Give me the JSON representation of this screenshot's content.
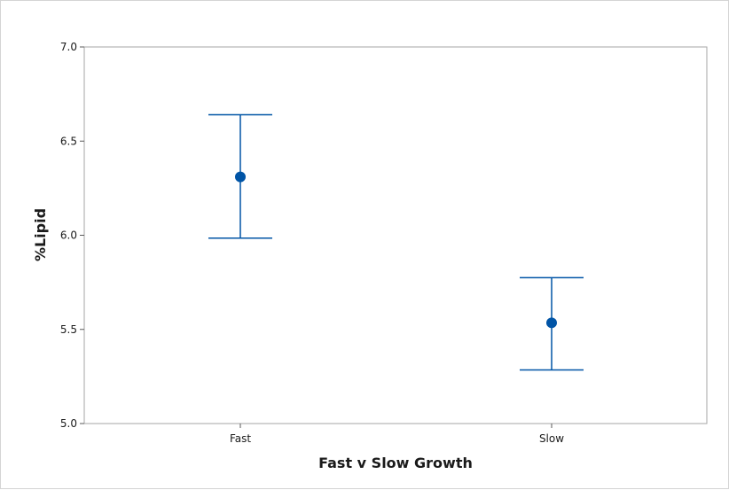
{
  "chart_data": {
    "type": "interval",
    "categories": [
      "Fast",
      "Slow"
    ],
    "mean": [
      6.31,
      5.535
    ],
    "lower": [
      5.985,
      5.285
    ],
    "upper": [
      6.64,
      5.775
    ],
    "xlabel": "Fast v Slow Growth",
    "ylabel": "%Lipid",
    "ylim": [
      5.0,
      7.0
    ],
    "yticks": [
      "5.0",
      "5.5",
      "6.0",
      "6.5",
      "7.0"
    ],
    "grid": false,
    "color": "#0054a6"
  }
}
